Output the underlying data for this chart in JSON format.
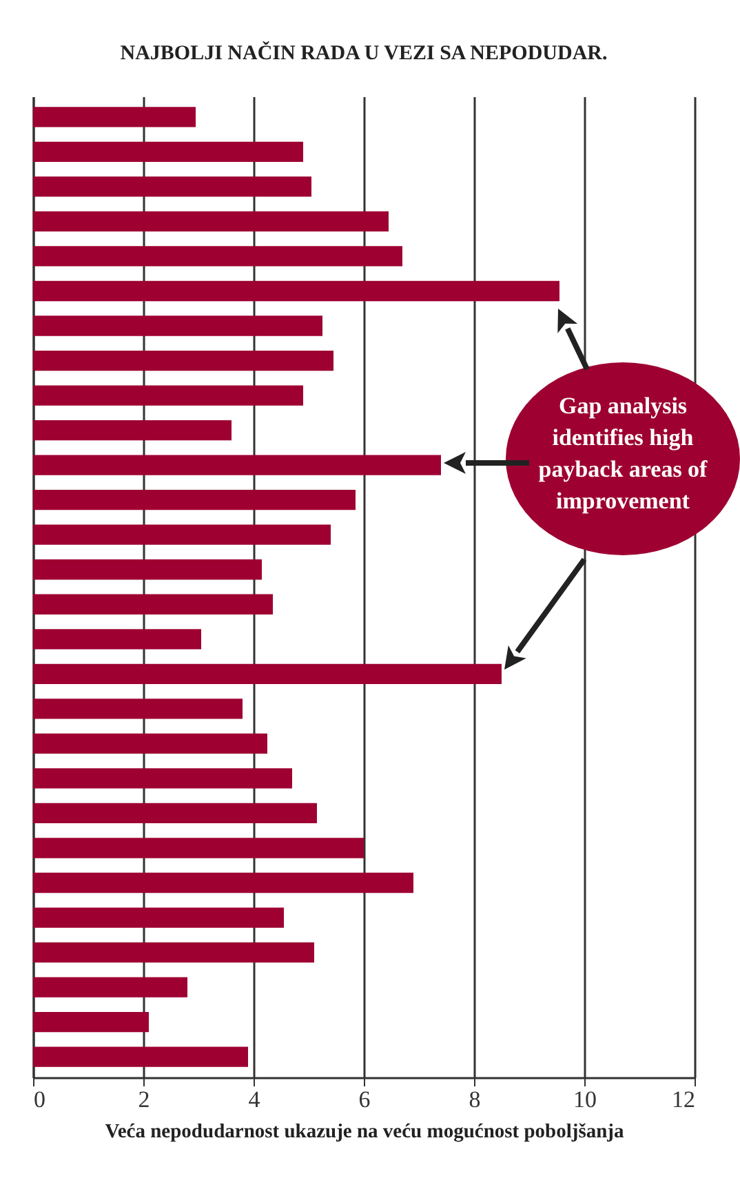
{
  "chart_data": {
    "type": "bar",
    "orientation": "horizontal",
    "title": "NAJBOLJI NAČIN RADA U VEZI SA NEPODUDAR.",
    "xlabel": "Veća nepodudarnost  ukazuje na veću mogućnost poboljšanja",
    "categories": [
      null,
      null,
      null,
      null,
      null,
      null,
      null,
      null,
      null,
      null,
      null,
      null,
      null,
      null,
      null,
      null,
      null,
      null,
      null,
      null,
      null,
      null,
      null,
      null,
      null,
      null,
      null,
      null
    ],
    "values": [
      2.95,
      4.9,
      5.05,
      6.45,
      6.7,
      9.55,
      5.25,
      5.45,
      4.9,
      3.6,
      7.4,
      5.85,
      5.4,
      4.15,
      4.35,
      3.05,
      8.5,
      3.8,
      4.25,
      4.7,
      5.15,
      6.0,
      6.9,
      4.55,
      5.1,
      2.8,
      2.1,
      3.9
    ],
    "color": "#9e0032",
    "xlim": [
      0,
      12
    ],
    "xticks": [
      0,
      2,
      4,
      6,
      8,
      10,
      12
    ],
    "grid": "x",
    "tick_labels": "x",
    "annotations": [
      "Gap analysis identifies high payback areas of improvement"
    ]
  }
}
